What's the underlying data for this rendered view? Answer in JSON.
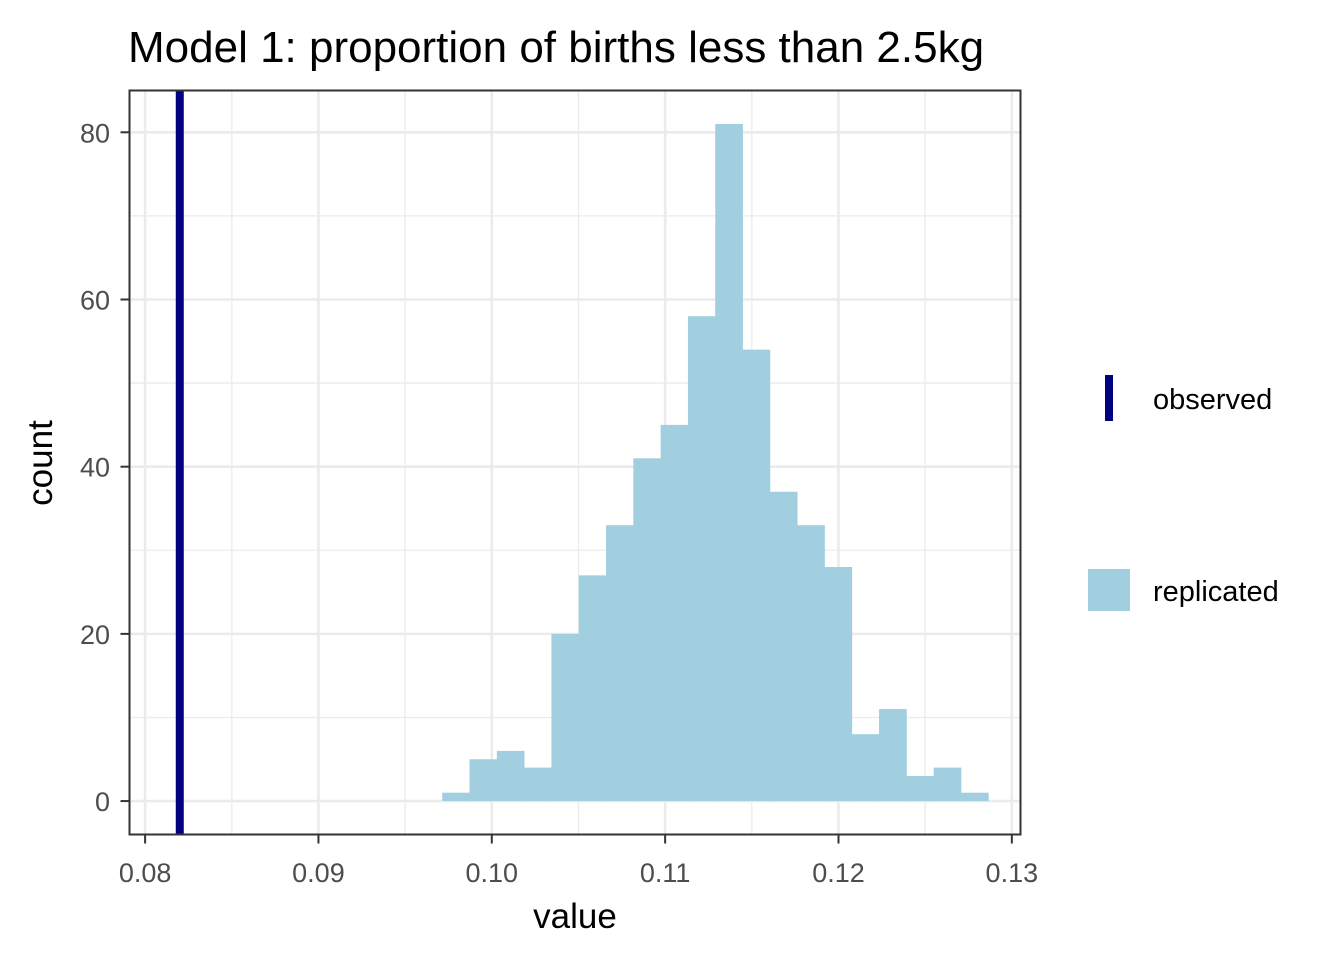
{
  "chart_data": {
    "type": "bar",
    "title": "Model 1: proportion of births less than 2.5kg",
    "xlabel": "value",
    "ylabel": "count",
    "xlim": [
      0.0791,
      0.1305
    ],
    "ylim": [
      -4,
      85
    ],
    "x_ticks": [
      0.08,
      0.09,
      0.1,
      0.11,
      0.12,
      0.13
    ],
    "x_tick_labels": [
      "0.08",
      "0.09",
      "0.10",
      "0.11",
      "0.12",
      "0.13"
    ],
    "y_ticks": [
      0,
      20,
      40,
      60,
      80
    ],
    "y_tick_labels": [
      "0",
      "20",
      "40",
      "60",
      "80"
    ],
    "grid": true,
    "histogram": {
      "name": "replicated",
      "color": "#a1cfe0",
      "bin_start": 0.09714,
      "bin_width": 0.001575,
      "counts": [
        1,
        5,
        6,
        4,
        20,
        27,
        33,
        41,
        45,
        58,
        81,
        54,
        37,
        33,
        28,
        8,
        11,
        3,
        4,
        1
      ]
    },
    "observed": {
      "name": "observed",
      "value": 0.082,
      "color": "#000080"
    },
    "legend": {
      "position": "right",
      "items": [
        {
          "label": "observed",
          "kind": "line",
          "color": "#000080"
        },
        {
          "label": "replicated",
          "kind": "fill",
          "color": "#a1cfe0"
        }
      ]
    }
  }
}
